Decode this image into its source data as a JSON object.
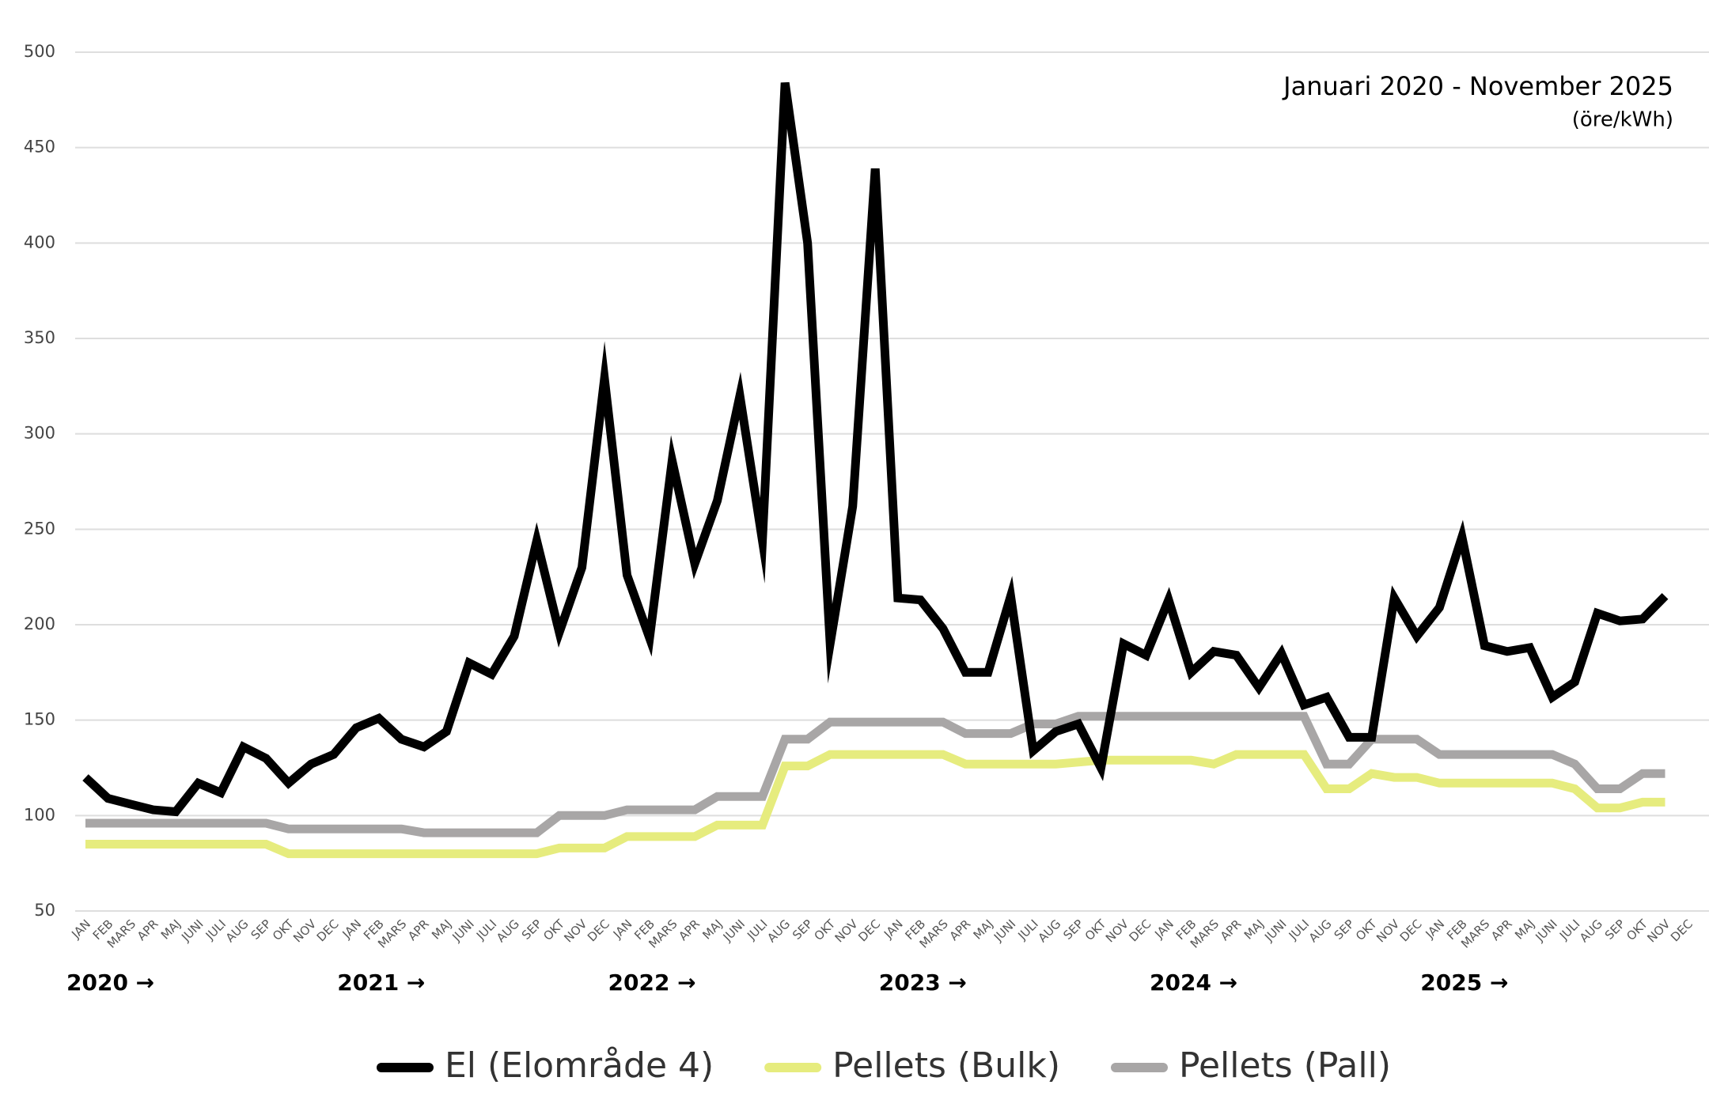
{
  "chart_data": {
    "type": "line",
    "title": "Januari 2020 - November 2025",
    "subtitle": "(öre/kWh)",
    "year_labels": [
      "2020 →",
      "2021 →",
      "2022 →",
      "2023 →",
      "2024 →",
      "2025 →"
    ],
    "categories": [
      "JAN",
      "FEB",
      "MARS",
      "APR",
      "MAJ",
      "JUNI",
      "JULI",
      "AUG",
      "SEP",
      "OKT",
      "NOV",
      "DEC",
      "JAN",
      "FEB",
      "MARS",
      "APR",
      "MAJ",
      "JUNI",
      "JULI",
      "AUG",
      "SEP",
      "OKT",
      "NOV",
      "DEC",
      "JAN",
      "FEB",
      "MARS",
      "APR",
      "MAJ",
      "JUNI",
      "JULI",
      "AUG",
      "SEP",
      "OKT",
      "NOV",
      "DEC",
      "JAN",
      "FEB",
      "MARS",
      "APR",
      "MAJ",
      "JUNI",
      "JULI",
      "AUG",
      "SEP",
      "OKT",
      "NOV",
      "DEC",
      "JAN",
      "FEB",
      "MARS",
      "APR",
      "MAJ",
      "JUNI",
      "JULI",
      "AUG",
      "SEP",
      "OKT",
      "NOV",
      "DEC",
      "JAN",
      "FEB",
      "MARS",
      "APR",
      "MAJ",
      "JUNI",
      "JULI",
      "AUG",
      "SEP",
      "OKT",
      "NOV",
      "DEC"
    ],
    "series": [
      {
        "name": "El (Elområde 4)",
        "color": "#000000",
        "values": [
          120,
          109,
          106,
          103,
          102,
          117,
          112,
          136,
          130,
          117,
          127,
          132,
          146,
          151,
          140,
          136,
          144,
          180,
          174,
          194,
          244,
          196,
          230,
          329,
          226,
          193,
          286,
          232,
          265,
          320,
          244,
          484,
          400,
          190,
          262,
          439,
          214,
          213,
          198,
          175,
          175,
          215,
          134,
          144,
          148,
          125,
          190,
          184,
          213,
          175,
          186,
          184,
          167,
          185,
          158,
          162,
          141,
          141,
          214,
          194,
          209,
          246,
          189,
          186,
          188,
          162,
          170,
          206,
          202,
          203,
          215,
          null
        ]
      },
      {
        "name": "Pellets (Bulk)",
        "color": "#e6ec7e",
        "values": [
          85,
          85,
          85,
          85,
          85,
          85,
          85,
          85,
          85,
          80,
          80,
          80,
          80,
          80,
          80,
          80,
          80,
          80,
          80,
          80,
          80,
          83,
          83,
          83,
          89,
          89,
          89,
          89,
          95,
          95,
          95,
          126,
          126,
          132,
          132,
          132,
          132,
          132,
          132,
          127,
          127,
          127,
          127,
          127,
          128,
          129,
          129,
          129,
          129,
          129,
          127,
          132,
          132,
          132,
          132,
          114,
          114,
          122,
          120,
          120,
          117,
          117,
          117,
          117,
          117,
          117,
          114,
          104,
          104,
          107,
          107,
          null
        ]
      },
      {
        "name": "Pellets (Pall)",
        "color": "#a8a6a6",
        "values": [
          96,
          96,
          96,
          96,
          96,
          96,
          96,
          96,
          96,
          93,
          93,
          93,
          93,
          93,
          93,
          91,
          91,
          91,
          91,
          91,
          91,
          100,
          100,
          100,
          103,
          103,
          103,
          103,
          110,
          110,
          110,
          140,
          140,
          149,
          149,
          149,
          149,
          149,
          149,
          143,
          143,
          143,
          148,
          148,
          152,
          152,
          152,
          152,
          152,
          152,
          152,
          152,
          152,
          152,
          152,
          127,
          127,
          140,
          140,
          140,
          132,
          132,
          132,
          132,
          132,
          132,
          127,
          114,
          114,
          122,
          122,
          null
        ]
      }
    ],
    "ylim": [
      50,
      500
    ],
    "yticks": [
      50,
      100,
      150,
      200,
      250,
      300,
      350,
      400,
      450,
      500
    ],
    "grid": true
  }
}
